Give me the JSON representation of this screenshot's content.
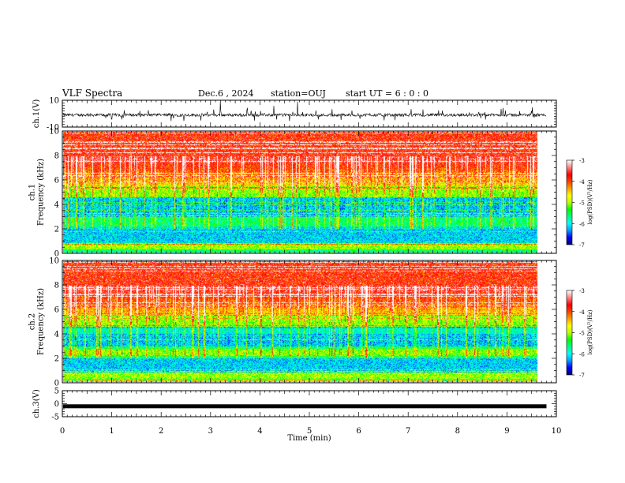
{
  "header": {
    "title": "VLF Spectra",
    "date": "Dec.6 , 2024",
    "station": "station=OUJ",
    "start": "start UT =  6 : 0 : 0"
  },
  "chart_data": [
    {
      "type": "line",
      "panel": "ch1-waveform",
      "ylabel": "ch.1(V)",
      "ylim": [
        -10,
        10
      ],
      "yticks": [
        "10",
        "-10"
      ],
      "baseline": -1,
      "color": "#000000"
    },
    {
      "type": "heatmap",
      "panel": "ch1-spectrogram",
      "ylabel": "ch.1\nFrequency (kHz)",
      "ylim": [
        0,
        10
      ],
      "yticks": [
        "0",
        "2",
        "4",
        "6",
        "8",
        "10"
      ],
      "xlim": [
        0,
        10
      ],
      "data_end_min": 9.8
    },
    {
      "type": "heatmap",
      "panel": "ch2-spectrogram",
      "ylabel": "ch.2\nFrequency (kHz)",
      "ylim": [
        0,
        10
      ],
      "yticks": [
        "0",
        "2",
        "4",
        "6",
        "8",
        "10"
      ],
      "xlim": [
        0,
        10
      ],
      "data_end_min": 9.8
    },
    {
      "type": "line",
      "panel": "ch3-waveform",
      "ylabel": "ch.3(V)",
      "ylim": [
        -5,
        5
      ],
      "yticks": [
        "5",
        "0",
        "-5"
      ],
      "baseline": -1,
      "color": "#000000"
    }
  ],
  "xaxis": {
    "label": "Time (min)",
    "ticks": [
      "0",
      "1",
      "2",
      "3",
      "4",
      "5",
      "6",
      "7",
      "8",
      "9",
      "10"
    ],
    "range": [
      0,
      10
    ]
  },
  "colorbar": {
    "label": "log(PSD)(V²/Hz)",
    "ticks": [
      "-3",
      "-4",
      "-5",
      "-6",
      "-7"
    ],
    "range": [
      -7,
      -3
    ],
    "colors": [
      "#000080",
      "#0000ff",
      "#00a0ff",
      "#00ffff",
      "#00ff80",
      "#00ff00",
      "#c0ff00",
      "#ffff00",
      "#ffa000",
      "#ff4000",
      "#ff0000",
      "#ff8080",
      "#ffffff"
    ]
  }
}
